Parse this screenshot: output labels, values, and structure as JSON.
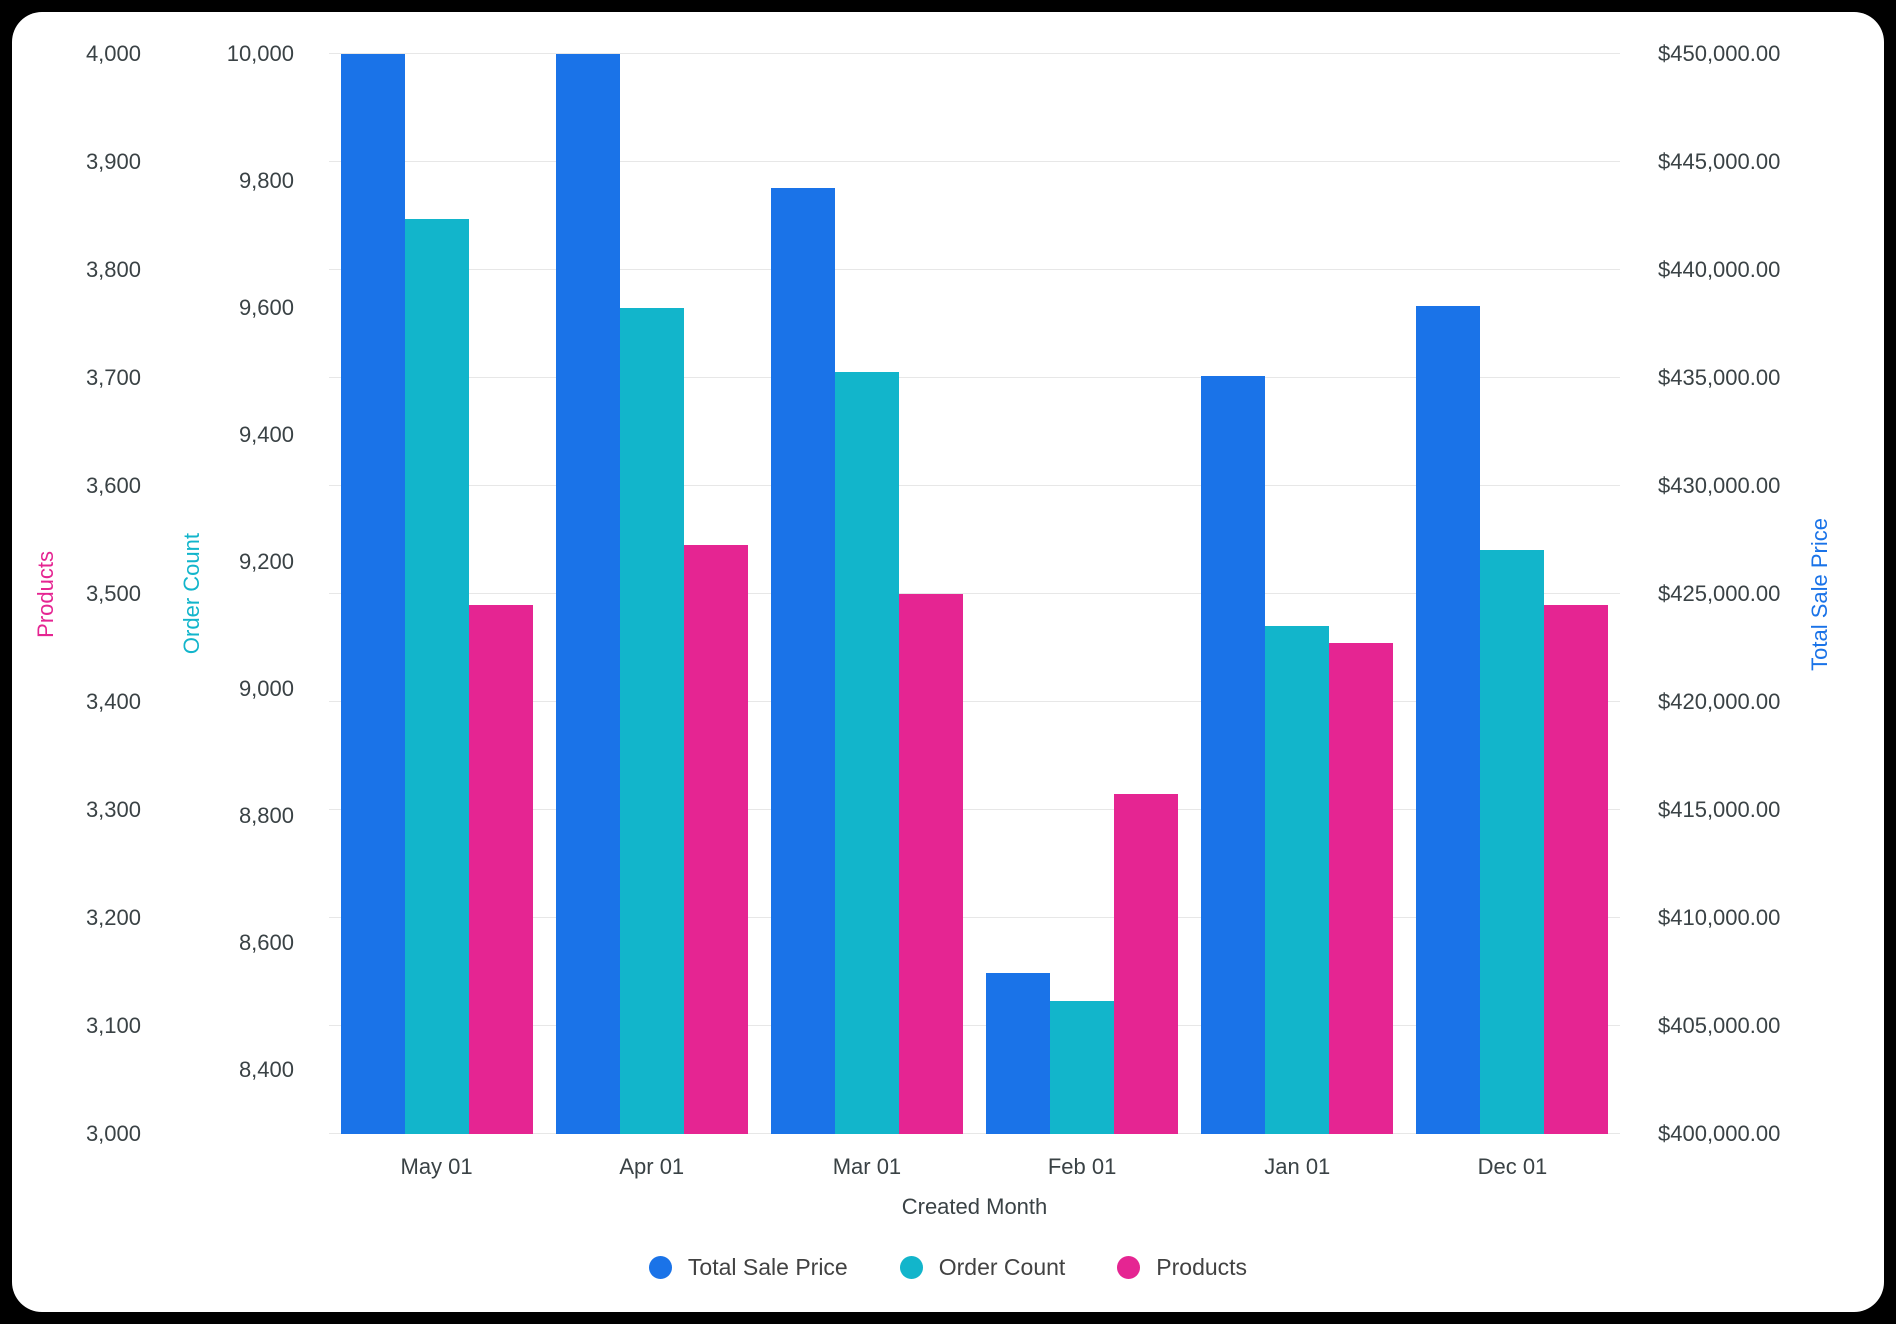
{
  "chart_data": {
    "type": "bar",
    "title": "",
    "x_label": "Created Month",
    "categories": [
      "May 01",
      "Apr 01",
      "Mar 01",
      "Feb 01",
      "Jan 01",
      "Dec 01"
    ],
    "legend_position": "bottom",
    "grid": true,
    "axes": {
      "products": {
        "title": "Products",
        "color": "#E52592",
        "min": 3000,
        "max": 4000,
        "ticks": [
          {
            "v": 3000,
            "label": "3,000"
          },
          {
            "v": 3100,
            "label": "3,100"
          },
          {
            "v": 3200,
            "label": "3,200"
          },
          {
            "v": 3300,
            "label": "3,300"
          },
          {
            "v": 3400,
            "label": "3,400"
          },
          {
            "v": 3500,
            "label": "3,500"
          },
          {
            "v": 3600,
            "label": "3,600"
          },
          {
            "v": 3700,
            "label": "3,700"
          },
          {
            "v": 3800,
            "label": "3,800"
          },
          {
            "v": 3900,
            "label": "3,900"
          },
          {
            "v": 4000,
            "label": "4,000"
          }
        ]
      },
      "order_count": {
        "title": "Order Count",
        "color": "#12B5CB",
        "min": 8300,
        "max": 10000,
        "ticks": [
          {
            "v": 8400,
            "label": "8,400"
          },
          {
            "v": 8600,
            "label": "8,600"
          },
          {
            "v": 8800,
            "label": "8,800"
          },
          {
            "v": 9000,
            "label": "9,000"
          },
          {
            "v": 9200,
            "label": "9,200"
          },
          {
            "v": 9400,
            "label": "9,400"
          },
          {
            "v": 9600,
            "label": "9,600"
          },
          {
            "v": 9800,
            "label": "9,800"
          },
          {
            "v": 10000,
            "label": "10,000"
          }
        ]
      },
      "total_sale_price": {
        "title": "Total Sale Price",
        "color": "#1A73E8",
        "min": 400000,
        "max": 450000,
        "ticks": [
          {
            "v": 400000,
            "label": "$400,000.00"
          },
          {
            "v": 405000,
            "label": "$405,000.00"
          },
          {
            "v": 410000,
            "label": "$410,000.00"
          },
          {
            "v": 415000,
            "label": "$415,000.00"
          },
          {
            "v": 420000,
            "label": "$420,000.00"
          },
          {
            "v": 425000,
            "label": "$425,000.00"
          },
          {
            "v": 430000,
            "label": "$430,000.00"
          },
          {
            "v": 435000,
            "label": "$435,000.00"
          },
          {
            "v": 440000,
            "label": "$440,000.00"
          },
          {
            "v": 445000,
            "label": "$445,000.00"
          },
          {
            "v": 450000,
            "label": "$450,000.00"
          }
        ]
      }
    },
    "series": [
      {
        "key": "total_sale_price",
        "name": "Total Sale Price",
        "color": "#1A73E8",
        "axis": "total_sale_price",
        "values": [
          450000,
          450000,
          443800,
          407450,
          435100,
          438350
        ]
      },
      {
        "key": "order_count",
        "name": "Order Count",
        "color": "#12B5CB",
        "axis": "order_count",
        "values": [
          9740,
          9600,
          9500,
          8510,
          9100,
          9220
        ]
      },
      {
        "key": "products",
        "name": "Products",
        "color": "#E52592",
        "axis": "products",
        "values": [
          3490,
          3545,
          3500,
          3315,
          3455,
          3490
        ]
      }
    ]
  }
}
